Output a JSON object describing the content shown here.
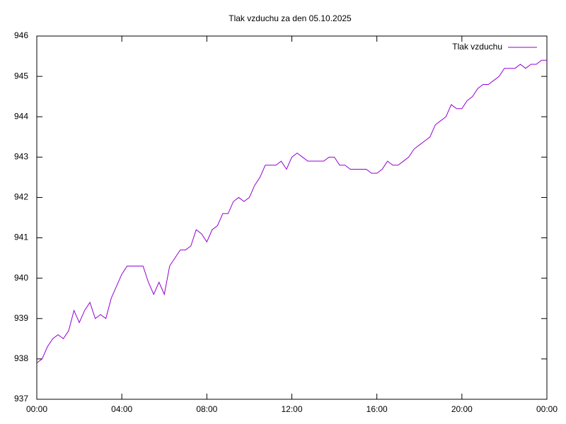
{
  "chart_data": {
    "type": "line",
    "title": "Tlak vzduchu za den 05.10.2025",
    "x": [
      0,
      0.25,
      0.5,
      0.75,
      1,
      1.25,
      1.5,
      1.75,
      2,
      2.25,
      2.5,
      2.75,
      3,
      3.25,
      3.5,
      3.75,
      4,
      4.25,
      4.5,
      4.75,
      5,
      5.25,
      5.5,
      5.75,
      6,
      6.25,
      6.5,
      6.75,
      7,
      7.25,
      7.5,
      7.75,
      8,
      8.25,
      8.5,
      8.75,
      9,
      9.25,
      9.5,
      9.75,
      10,
      10.25,
      10.5,
      10.75,
      11,
      11.25,
      11.5,
      11.75,
      12,
      12.25,
      12.5,
      12.75,
      13,
      13.25,
      13.5,
      13.75,
      14,
      14.25,
      14.5,
      14.75,
      15,
      15.25,
      15.5,
      15.75,
      16,
      16.25,
      16.5,
      16.75,
      17,
      17.25,
      17.5,
      17.75,
      18,
      18.25,
      18.5,
      18.75,
      19,
      19.25,
      19.5,
      19.75,
      20,
      20.25,
      20.5,
      20.75,
      21,
      21.25,
      21.5,
      21.75,
      22,
      22.25,
      22.5,
      22.75,
      23,
      23.25,
      23.5,
      23.75,
      24
    ],
    "series": [
      {
        "name": "Tlak vzduchu",
        "color": "#9400d3",
        "values": [
          937.9,
          938.0,
          938.3,
          938.5,
          938.6,
          938.5,
          938.7,
          939.2,
          938.9,
          939.2,
          939.4,
          939.0,
          939.1,
          939.0,
          939.5,
          939.8,
          940.1,
          940.3,
          940.3,
          940.3,
          940.3,
          939.9,
          939.6,
          939.9,
          939.6,
          940.3,
          940.5,
          940.7,
          940.7,
          940.8,
          941.2,
          941.1,
          940.9,
          941.2,
          941.3,
          941.6,
          941.6,
          941.9,
          942.0,
          941.9,
          942.0,
          942.3,
          942.5,
          942.8,
          942.8,
          942.8,
          942.9,
          942.7,
          943.0,
          943.1,
          943.0,
          942.9,
          942.9,
          942.9,
          942.9,
          943.0,
          943.0,
          942.8,
          942.8,
          942.7,
          942.7,
          942.7,
          942.7,
          942.6,
          942.6,
          942.7,
          942.9,
          942.8,
          942.8,
          942.9,
          943.0,
          943.2,
          943.3,
          943.4,
          943.5,
          943.8,
          943.9,
          944.0,
          944.3,
          944.2,
          944.2,
          944.4,
          944.5,
          944.7,
          944.8,
          944.8,
          944.9,
          945.0,
          945.2,
          945.2,
          945.2,
          945.3,
          945.2,
          945.3,
          945.3,
          945.4,
          945.4
        ]
      }
    ],
    "xlim": [
      0,
      24
    ],
    "xticks": [
      {
        "value": 0,
        "label": "00:00"
      },
      {
        "value": 4,
        "label": "04:00"
      },
      {
        "value": 8,
        "label": "08:00"
      },
      {
        "value": 12,
        "label": "12:00"
      },
      {
        "value": 16,
        "label": "16:00"
      },
      {
        "value": 20,
        "label": "20:00"
      },
      {
        "value": 24,
        "label": "00:00"
      }
    ],
    "ylim": [
      937,
      946
    ],
    "yticks": [
      937,
      938,
      939,
      940,
      941,
      942,
      943,
      944,
      945,
      946
    ],
    "grid": false,
    "legend": "top-right"
  }
}
